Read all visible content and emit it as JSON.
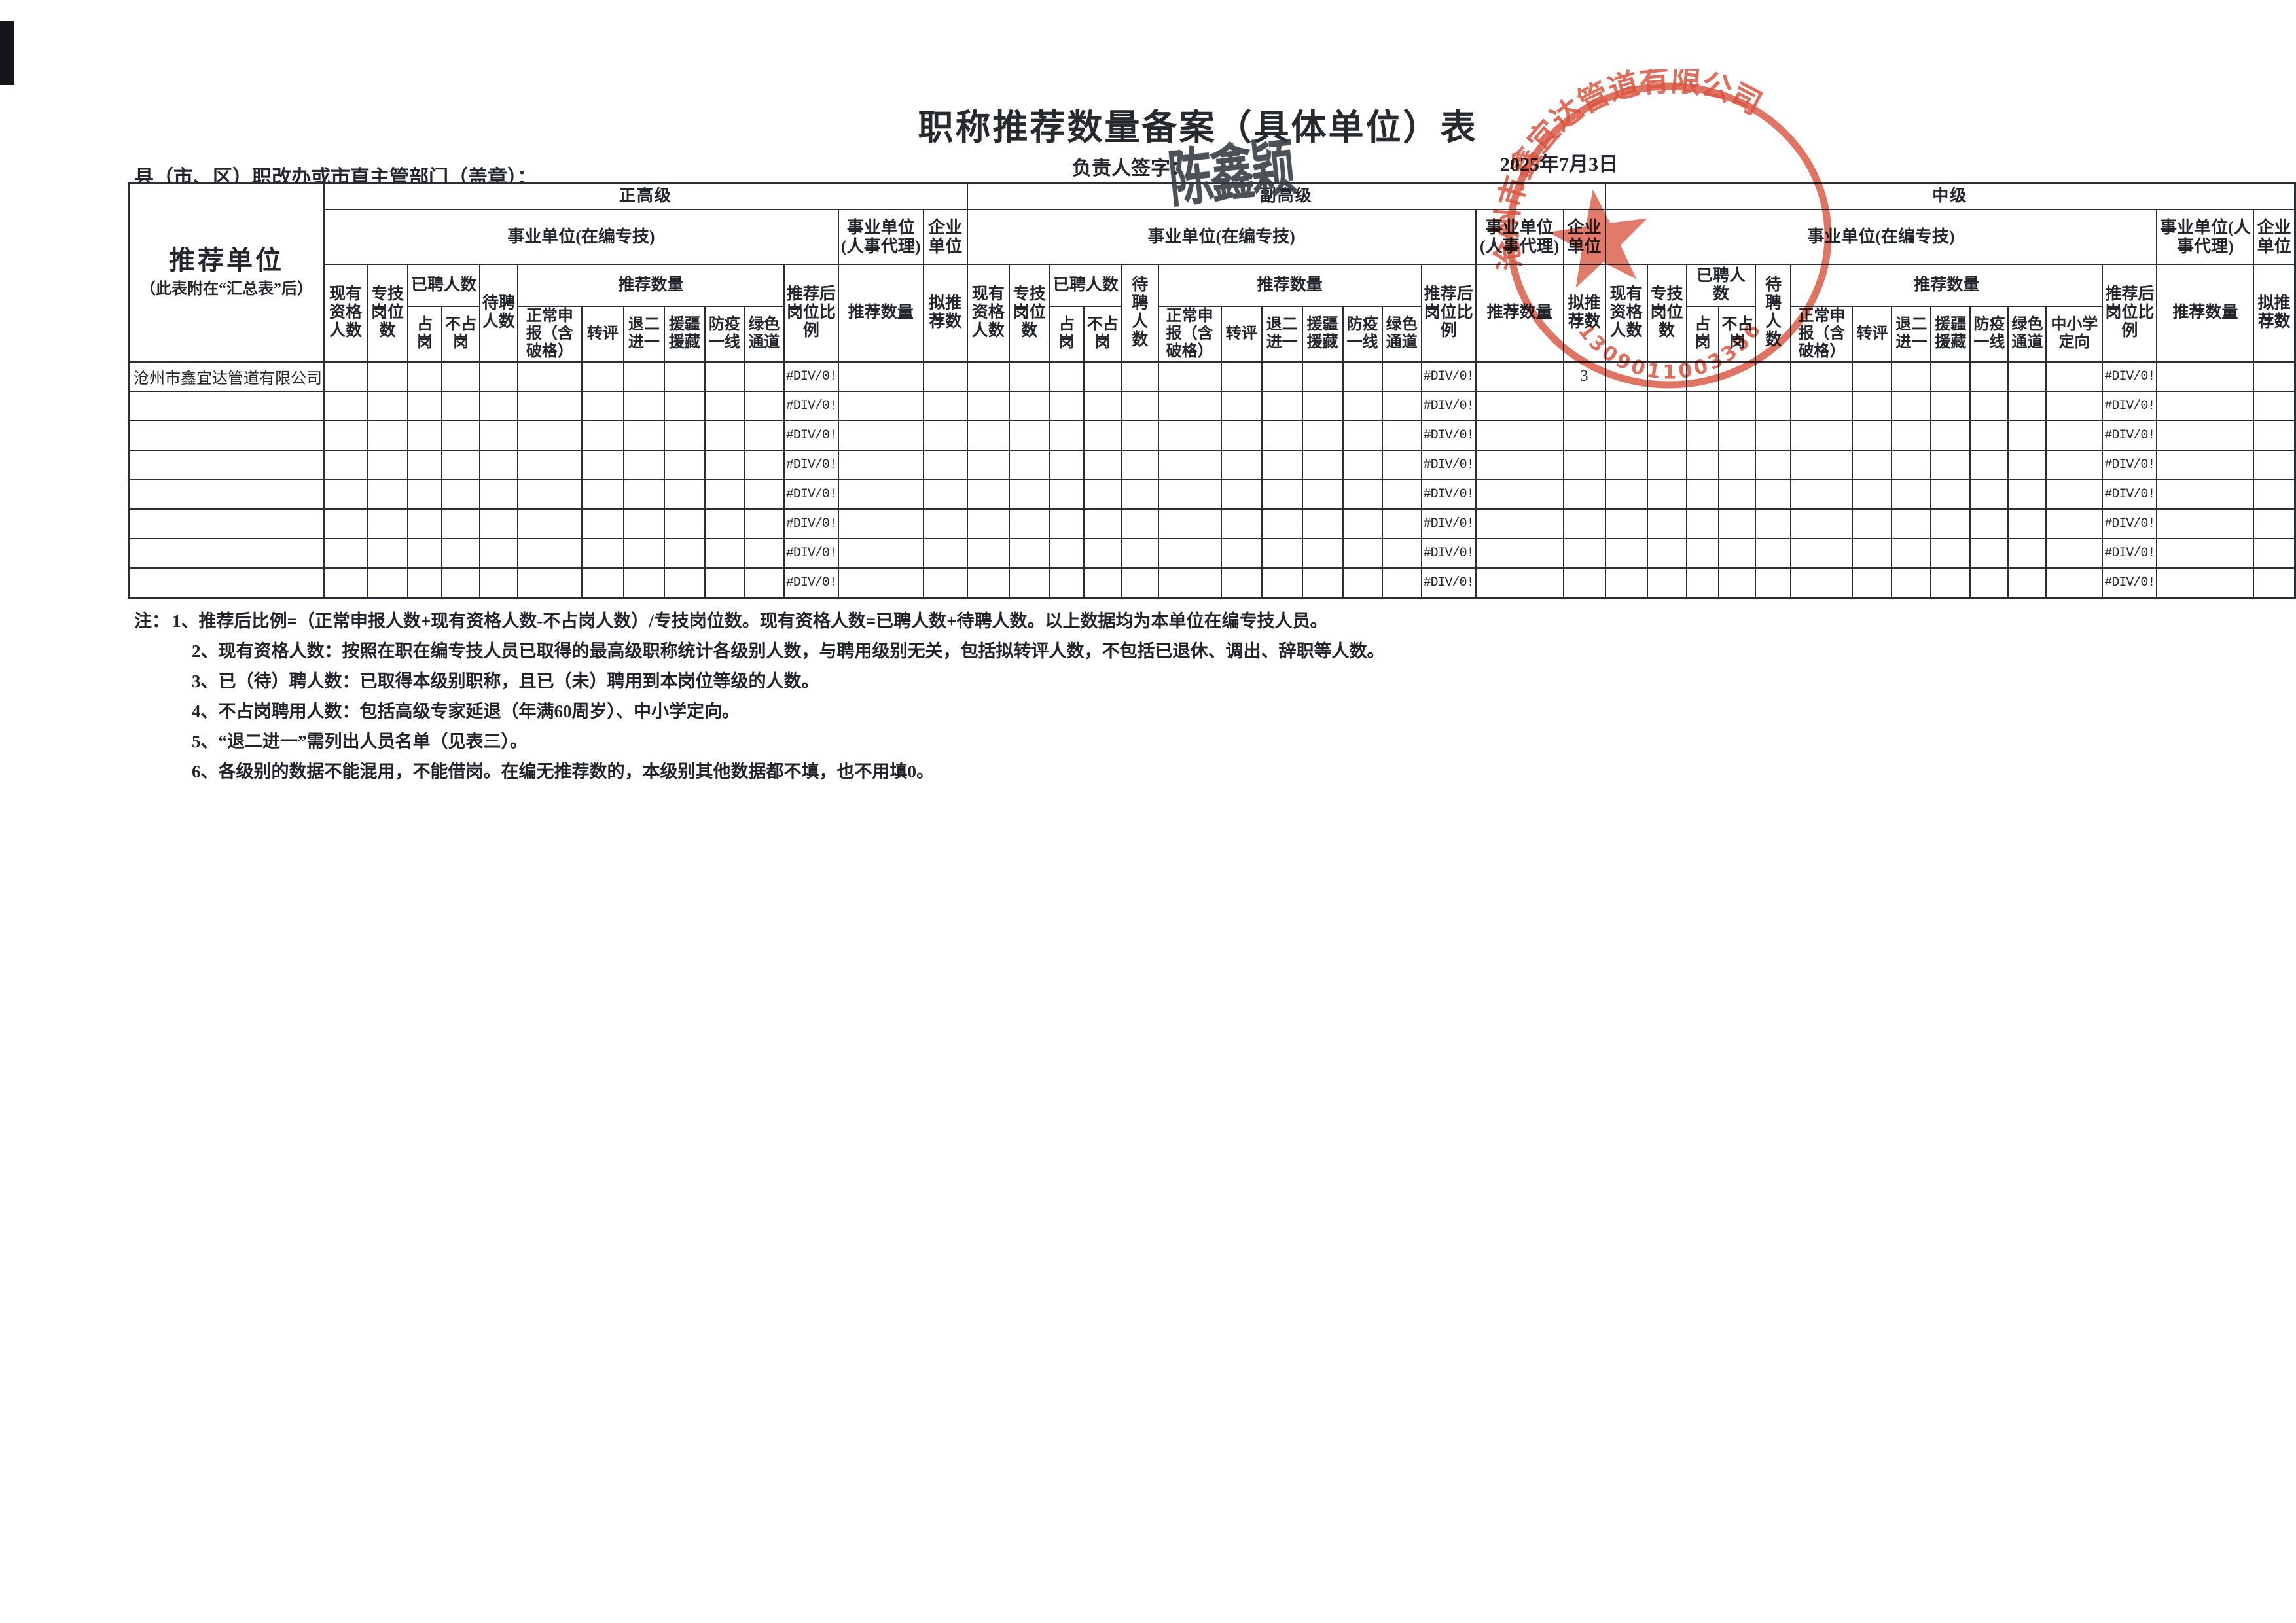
{
  "page": {
    "title": "职称推荐数量备案（具体单位）表",
    "dept_label": "县（市、区）职改办或市直主管部门（盖章）：",
    "signer_label": "负责人签字：",
    "signature": "陈鑫颖",
    "date": "2025年7月3日"
  },
  "stamp": {
    "company": "沧州市鑫宜达管道有限公司",
    "code": "1309011003356",
    "color": "#d6452f"
  },
  "table": {
    "unit_col": {
      "title": "推荐单位",
      "subtitle": "（此表附在“汇总表”后）"
    },
    "levels": [
      {
        "name": "正高级"
      },
      {
        "name": "副高级"
      },
      {
        "name": "中级"
      }
    ],
    "col_labels": {
      "org_onstaff": "事业单位(在编专技)",
      "org_agency": "事业单位(人事代理)",
      "enterprise": "企业单位",
      "existing": "现有资格人数",
      "post": "专技岗位数",
      "hired": "已聘人数",
      "occupied": "占岗",
      "not_occupied": "不占岗",
      "waiting": "待聘人数",
      "rec_qty": "推荐数量",
      "normal": "正常申报（含破格）",
      "transfer": "转评",
      "retire2": "退二进一",
      "xinjiang": "援疆援藏",
      "epidemic": "防疫一线",
      "green": "绿色通道",
      "school": "中小学定向",
      "ratio": "推荐后岗位比例",
      "agency_qty": "推荐数量",
      "proposed": "拟推荐数"
    },
    "level_defs": [
      {
        "key": "senior",
        "leafs": [
          "existing",
          "post",
          "occupied",
          "not_occupied",
          "waiting",
          "normal",
          "transfer",
          "retire2",
          "xinjiang",
          "epidemic",
          "green",
          "ratio",
          "agency_qty",
          "proposed"
        ]
      },
      {
        "key": "vice",
        "leafs": [
          "existing",
          "post",
          "occupied",
          "not_occupied",
          "waiting",
          "normal",
          "transfer",
          "retire2",
          "xinjiang",
          "epidemic",
          "green",
          "ratio",
          "agency_qty",
          "proposed"
        ]
      },
      {
        "key": "mid",
        "leafs": [
          "existing",
          "post",
          "occupied",
          "not_occupied",
          "waiting",
          "normal",
          "transfer",
          "retire2",
          "xinjiang",
          "epidemic",
          "green",
          "school",
          "ratio",
          "agency_qty",
          "proposed"
        ]
      }
    ],
    "rows": [
      {
        "unit": "沧州市鑫宜达管道有限公司",
        "senior_ratio": "#DIV/0!",
        "vice_ratio": "#DIV/0!",
        "vice_proposed": "3",
        "mid_ratio": "#DIV/0!"
      },
      {
        "unit": "",
        "senior_ratio": "#DIV/0!",
        "vice_ratio": "#DIV/0!",
        "mid_ratio": "#DIV/0!"
      },
      {
        "unit": "",
        "senior_ratio": "#DIV/0!",
        "vice_ratio": "#DIV/0!",
        "mid_ratio": "#DIV/0!"
      },
      {
        "unit": "",
        "senior_ratio": "#DIV/0!",
        "vice_ratio": "#DIV/0!",
        "mid_ratio": "#DIV/0!"
      },
      {
        "unit": "",
        "senior_ratio": "#DIV/0!",
        "vice_ratio": "#DIV/0!",
        "mid_ratio": "#DIV/0!"
      },
      {
        "unit": "",
        "senior_ratio": "#DIV/0!",
        "vice_ratio": "#DIV/0!",
        "mid_ratio": "#DIV/0!"
      },
      {
        "unit": "",
        "senior_ratio": "#DIV/0!",
        "vice_ratio": "#DIV/0!",
        "mid_ratio": "#DIV/0!"
      },
      {
        "unit": "",
        "senior_ratio": "#DIV/0!",
        "vice_ratio": "#DIV/0!",
        "mid_ratio": "#DIV/0!"
      }
    ]
  },
  "notes": {
    "prefix": "注：",
    "items": [
      "1、推荐后比例=（正常申报人数+现有资格人数-不占岗人数）/专技岗位数。现有资格人数=已聘人数+待聘人数。以上数据均为本单位在编专技人员。",
      "2、现有资格人数：按照在职在编专技人员已取得的最高级职称统计各级别人数，与聘用级别无关，包括拟转评人数，不包括已退休、调出、辞职等人数。",
      "3、已（待）聘人数：已取得本级别职称，且已（未）聘用到本岗位等级的人数。",
      "4、不占岗聘用人数：包括高级专家延退（年满60周岁）、中小学定向。",
      "5、“退二进一”需列出人员名单（见表三）。",
      "6、各级别的数据不能混用，不能借岗。在编无推荐数的，本级别其他数据都不填，也不用填0。"
    ]
  }
}
